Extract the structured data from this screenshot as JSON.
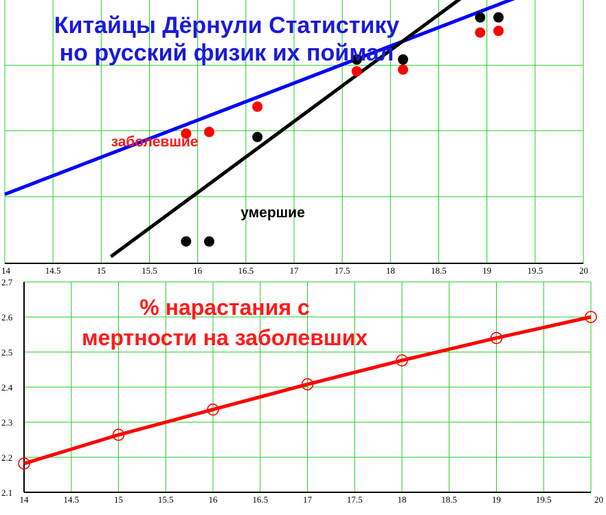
{
  "colors": {
    "grid": "#22cc22",
    "red_series": "#ff0000",
    "black_series": "#000000",
    "blue_fit": "#0000ff",
    "title_blue": "#1a1adb",
    "label_red": "#ff1a1a",
    "axis": "#000000"
  },
  "chart_data": [
    {
      "type": "scatter",
      "title": "Китайцы Дёрнули Статистику",
      "subtitle": "но русский физик их поймал",
      "xlim": [
        14,
        20
      ],
      "x_ticks": [
        "14",
        "14.5",
        "15",
        "15.5",
        "16",
        "16.5",
        "17",
        "17.5",
        "18",
        "18.5",
        "19",
        "19.5",
        "20"
      ],
      "y_ticks_visible": false,
      "grid": true,
      "annotations": {
        "red_label": "заболевшие",
        "black_label": "умершие"
      },
      "series": [
        {
          "name": "заболевшие",
          "color": "#ff0000",
          "points": [
            [
              15.88,
              2.37
            ],
            [
              16.12,
              2.38
            ],
            [
              16.62,
              2.53
            ],
            [
              17.65,
              2.74
            ],
            [
              18.13,
              2.75
            ],
            [
              18.93,
              2.97
            ],
            [
              19.12,
              2.98
            ]
          ],
          "fit_line": {
            "color": "#0000ff",
            "from": [
              14,
              2.01
            ],
            "to": [
              20,
              3.33
            ]
          }
        },
        {
          "name": "умершие",
          "color": "#000000",
          "points": [
            [
              15.88,
              1.73
            ],
            [
              16.12,
              1.73
            ],
            [
              16.62,
              2.35
            ],
            [
              17.65,
              2.81
            ],
            [
              18.13,
              2.81
            ],
            [
              18.93,
              3.06
            ],
            [
              19.12,
              3.06
            ]
          ],
          "fit_line": {
            "color": "#000000",
            "from": [
              15.1,
              1.64
            ],
            "to": [
              20,
              3.71
            ]
          }
        }
      ]
    },
    {
      "type": "line",
      "title": "% нарастания с",
      "subtitle": "мертности на заболевших",
      "xlim": [
        14,
        20
      ],
      "ylim": [
        2.1,
        2.7
      ],
      "x_ticks": [
        "14",
        "14.5",
        "15",
        "15.5",
        "16",
        "16.5",
        "17",
        "17.5",
        "18",
        "18.5",
        "19",
        "19.5",
        "20"
      ],
      "y_ticks": [
        "2.1",
        "2.2",
        "2.3",
        "2.4",
        "2.5",
        "2.6",
        "2.7"
      ],
      "grid": true,
      "series": [
        {
          "color": "#ff0000",
          "x": [
            14,
            15,
            16,
            17,
            18,
            19,
            20
          ],
          "y": [
            2.182,
            2.264,
            2.336,
            2.408,
            2.476,
            2.54,
            2.6
          ]
        }
      ]
    }
  ]
}
